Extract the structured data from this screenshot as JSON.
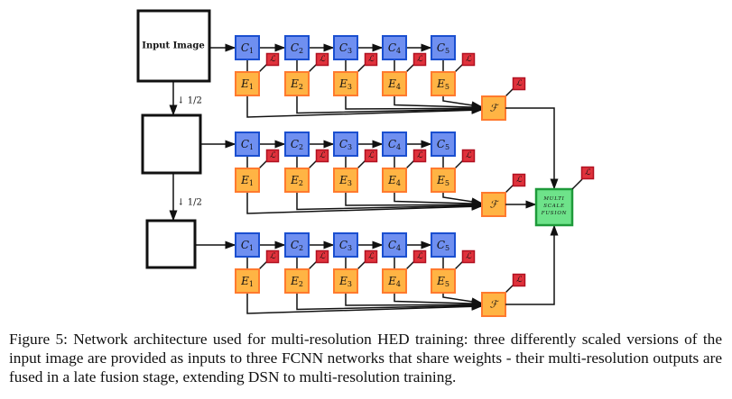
{
  "input_label": "Input Image",
  "downscale_label": "↓ 1/2",
  "conv_labels": [
    "C1",
    "C2",
    "C3",
    "C4",
    "C5"
  ],
  "side_labels": [
    "E1",
    "E2",
    "E3",
    "E4",
    "E5"
  ],
  "loss_label": "ℒ",
  "fuse_label": "ℱ",
  "multiscale_fusion_label": [
    "MULTI",
    "SCALE",
    "FUSION"
  ],
  "rows": 3,
  "colors": {
    "conv": "#6f8ff0",
    "conv_border": "#1a4fd0",
    "side": "#ffb444",
    "side_border": "#ff7a2e",
    "loss": "#e0323c",
    "loss_border": "#b01020",
    "fusion": "#6ee38a",
    "fusion_border": "#1e9a3a"
  },
  "caption": "Figure 5: Network architecture used for multi-resolution HED training: three differently scaled versions of the input image are provided as inputs to three FCNN networks that share weights - their multi-resolution outputs are fused in a late fusion stage, extending DSN to multi-resolution training."
}
